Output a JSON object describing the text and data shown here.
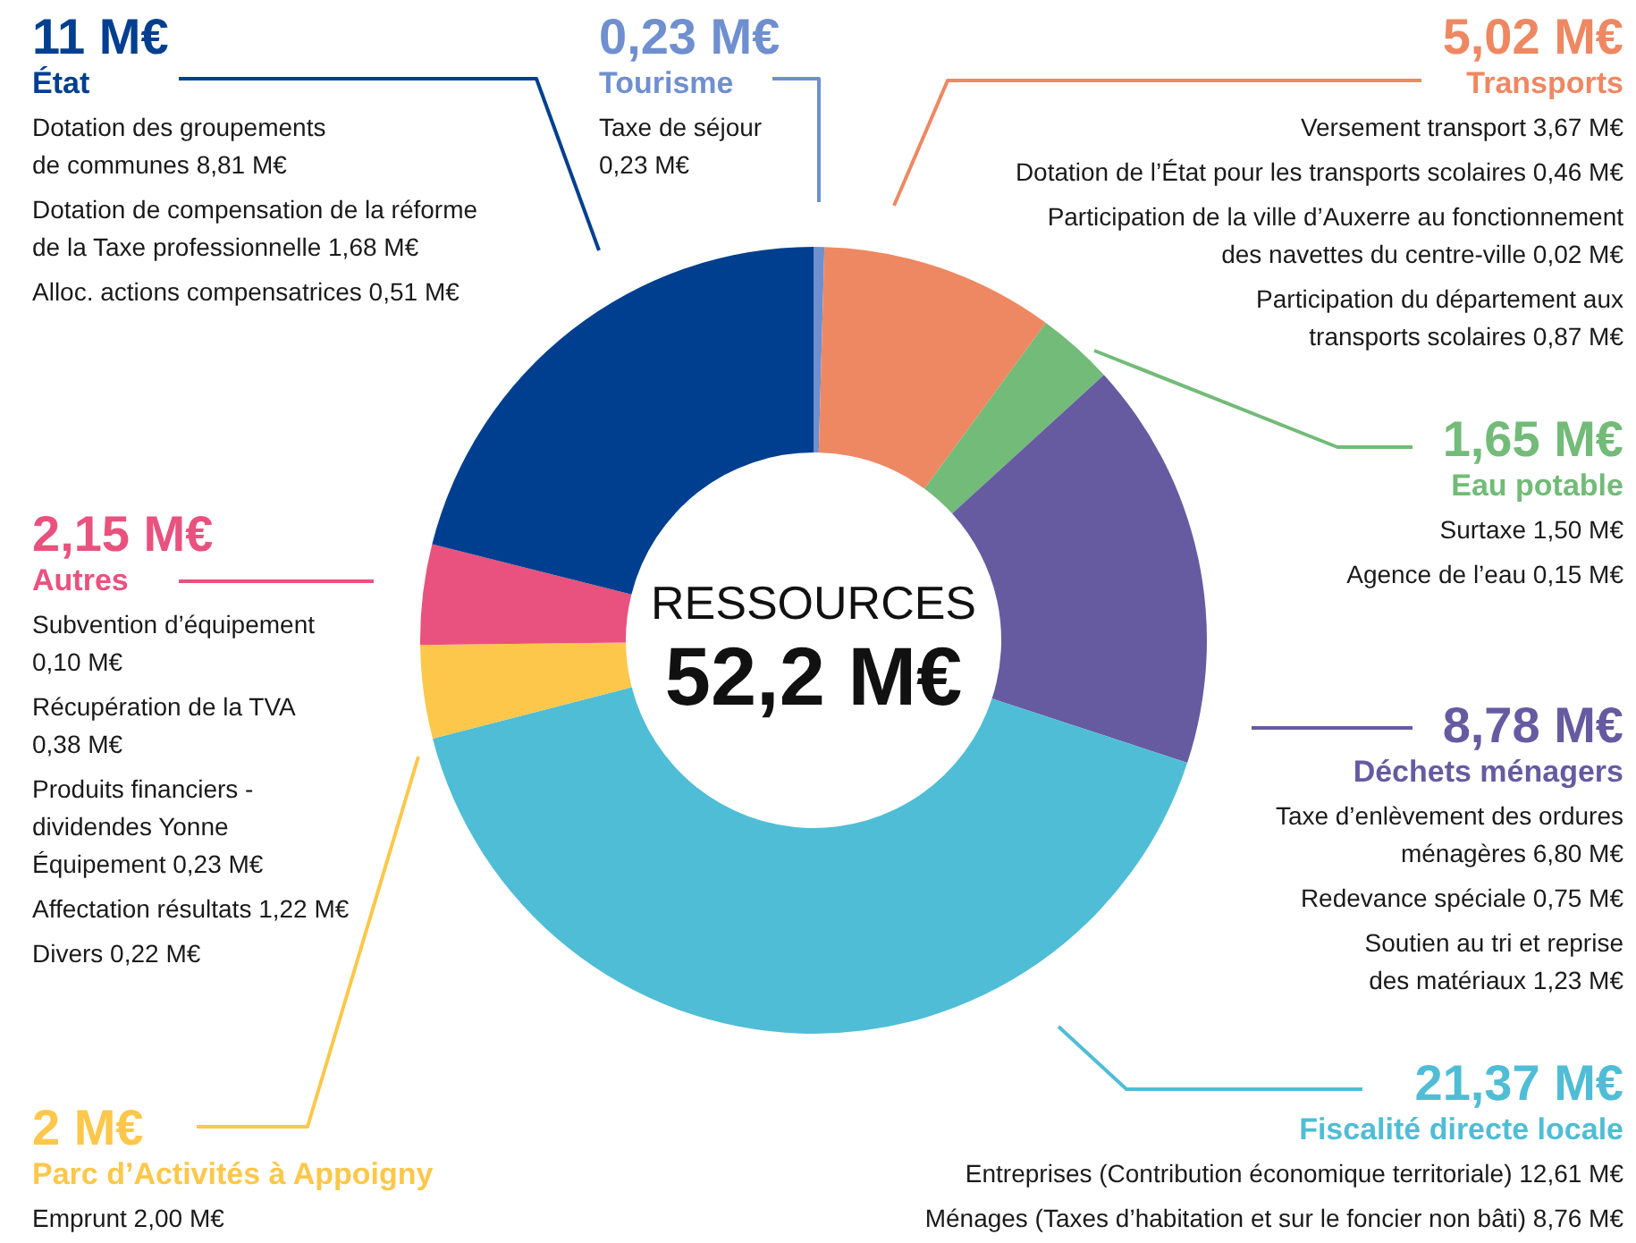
{
  "chart_data": {
    "type": "donut",
    "title": "RESSOURCES",
    "subtitle": "52,2 M€",
    "categories": [
      "Tourisme",
      "Transports",
      "Eau potable",
      "Déchets ménagers",
      "Fiscalité directe locale",
      "Parc d’Activités à Appoigny",
      "Autres",
      "État"
    ],
    "values": [
      0.23,
      5.02,
      1.65,
      8.78,
      21.37,
      2,
      2.15,
      11
    ],
    "value_labels": [
      "0,23 M€",
      "5,02 M€",
      "1,65 M€",
      "8,78 M€",
      "21,37 M€",
      "2 M€",
      "2,15 M€",
      "11 M€"
    ],
    "colors": [
      "#6f8fcf",
      "#ee8862",
      "#72bb78",
      "#665ba0",
      "#4fbdd5",
      "#fcc74a",
      "#e9527e",
      "#003f8f"
    ],
    "annotations": [
      "Taxe de séjour\n0,23 M€",
      "Versement transport 3,67 M€",
      "Dotation de l’État pour les transports scolaires 0,46 M€",
      "Participation de la ville d’Auxerre au fonctionnement\ndes navettes du centre-ville 0,02 M€",
      "Participation du département aux\ntransports scolaires 0,87 M€",
      "Surtaxe 1,50 M€",
      "Agence de l’eau 0,15 M€",
      "Taxe d’enlèvement des ordures\nménagères 6,80 M€",
      "Redevance spéciale 0,75 M€",
      "Soutien au tri et reprise\ndes matériaux 1,23 M€",
      "Entreprises (Contribution économique territoriale) 12,61 M€",
      "Ménages (Taxes d’habitation et sur le foncier non bâti) 8,76 M€",
      "Emprunt 2,00 M€",
      "Subvention d’équipement\n0,10 M€",
      "Récupération de la TVA\n0,38 M€",
      "Produits financiers -\ndividendes Yonne\nÉquipement 0,23 M€",
      "Affectation résultats 1,22 M€",
      "Divers 0,22 M€",
      "Dotation des groupements\nde communes 8,81 M€",
      "Dotation de compensation de la réforme\nde la Taxe professionnelle 1,68 M€",
      "Alloc. actions compensatrices 0,51 M€"
    ]
  }
}
